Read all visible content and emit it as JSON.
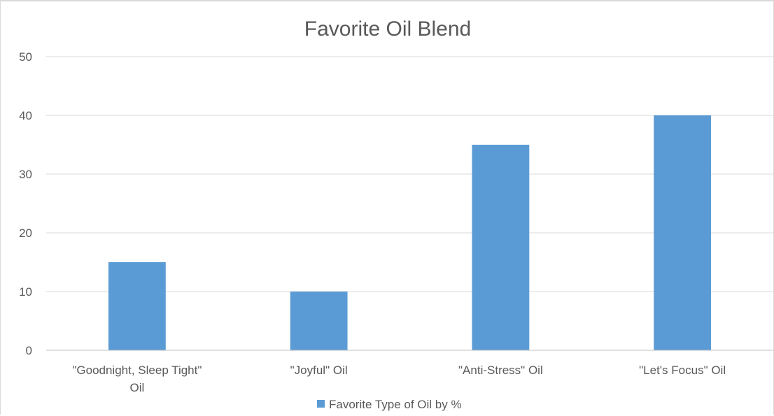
{
  "chart_data": {
    "type": "bar",
    "title": "Favorite Oil Blend",
    "categories": [
      [
        "\"Goodnight, Sleep Tight\"",
        "Oil"
      ],
      [
        "\"Joyful\" Oil"
      ],
      [
        "\"Anti-Stress\" Oil"
      ],
      [
        "\"Let's Focus\" Oil"
      ]
    ],
    "series": [
      {
        "name": "Favorite Type of Oil by %",
        "values": [
          15,
          10,
          35,
          40
        ],
        "color": "#5b9bd5"
      }
    ],
    "ylim": [
      0,
      50
    ],
    "yticks": [
      "0",
      "10",
      "20",
      "30",
      "40",
      "50"
    ],
    "grid": true,
    "gridColor": "#d9d9d9",
    "axisColor": "#bfbfbf",
    "textColor": "#595959",
    "legend_position": "bottom"
  }
}
